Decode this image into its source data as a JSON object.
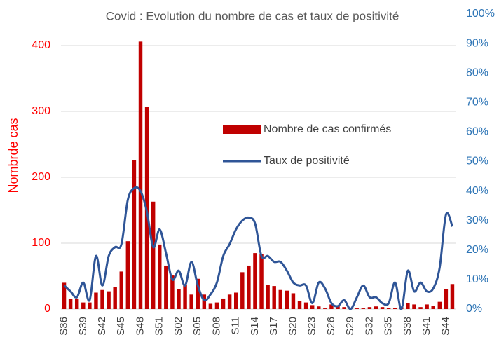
{
  "chart_data": {
    "type": "bar",
    "title": "Covid : Evolution du nombre de cas et taux de positivité",
    "ylabel": "Nombrde cas",
    "categories": [
      "S36",
      null,
      null,
      "S39",
      null,
      null,
      "S42",
      null,
      null,
      "S45",
      null,
      null,
      "S48",
      null,
      null,
      "S51",
      null,
      null,
      "S02",
      null,
      null,
      "S05",
      null,
      null,
      "S08",
      null,
      null,
      "S11",
      null,
      null,
      "S14",
      null,
      null,
      "S17",
      null,
      null,
      "S20",
      null,
      null,
      "S23",
      null,
      null,
      "S26",
      null,
      null,
      "S29",
      null,
      null,
      "S32",
      null,
      null,
      "S35",
      null,
      null,
      "S38",
      null,
      null,
      "S41",
      null,
      null,
      "S44",
      null
    ],
    "series": [
      {
        "name": "Nombre de cas confirmés",
        "type": "bar",
        "color": "#c00000",
        "values": [
          40,
          15,
          16,
          10,
          10,
          25,
          29,
          27,
          33,
          57,
          103,
          226,
          406,
          307,
          163,
          98,
          66,
          51,
          30,
          37,
          22,
          46,
          22,
          8,
          10,
          16,
          22,
          25,
          56,
          66,
          85,
          83,
          37,
          35,
          29,
          28,
          24,
          12,
          10,
          6,
          4,
          1,
          7,
          5,
          3,
          1,
          1,
          1,
          3,
          4,
          3,
          2,
          2,
          3,
          9,
          7,
          3,
          7,
          5,
          11,
          30,
          38
        ]
      },
      {
        "name": "Taux de positivité",
        "type": "line",
        "axis": "y2",
        "color": "#2f5597",
        "values": [
          8,
          6,
          4,
          9,
          3,
          18,
          8,
          18,
          21,
          22,
          37,
          41,
          40,
          33,
          21,
          27,
          19,
          10,
          13,
          8,
          16,
          8,
          3,
          5,
          9,
          18,
          22,
          27,
          30,
          31,
          29,
          18,
          18,
          16,
          16,
          13,
          9,
          8,
          8,
          2,
          9,
          7,
          2,
          1,
          3,
          0,
          4,
          8,
          4,
          4,
          2,
          2,
          9,
          0,
          13,
          6,
          9,
          6,
          7,
          14,
          32,
          28
        ]
      }
    ],
    "ylim": [
      0,
      400
    ],
    "yticks": [
      0,
      100,
      200,
      300,
      400
    ],
    "y2lim": [
      0,
      100
    ],
    "y2ticks": [
      {
        "value": 0,
        "label": "0%"
      },
      {
        "value": 10,
        "label": "10%"
      },
      {
        "value": 20,
        "label": "20%"
      },
      {
        "value": 30,
        "label": "30%"
      },
      {
        "value": 40,
        "label": "40%"
      },
      {
        "value": 50,
        "label": "50%"
      },
      {
        "value": 60,
        "label": "60%"
      },
      {
        "value": 70,
        "label": "70%"
      },
      {
        "value": 80,
        "label": "80%"
      },
      {
        "value": 90,
        "label": "90%"
      },
      {
        "value": 100,
        "label": "100%"
      }
    ],
    "grid": true,
    "ycolor": "#ff0000",
    "y2color": "#2e75b6"
  }
}
